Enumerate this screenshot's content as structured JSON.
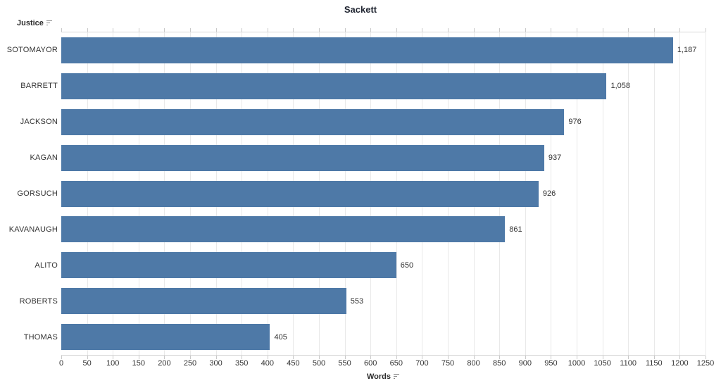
{
  "title": "Sackett",
  "row_axis": {
    "label": "Justice"
  },
  "col_axis": {
    "label": "Words"
  },
  "chart_data": {
    "type": "bar",
    "orientation": "horizontal",
    "title": "Sackett",
    "categories": [
      "SOTOMAYOR",
      "BARRETT",
      "JACKSON",
      "KAGAN",
      "GORSUCH",
      "KAVANAUGH",
      "ALITO",
      "ROBERTS",
      "THOMAS"
    ],
    "values": [
      1187,
      1058,
      976,
      937,
      926,
      861,
      650,
      553,
      405
    ],
    "value_labels": [
      "1,187",
      "1,058",
      "976",
      "937",
      "926",
      "861",
      "650",
      "553",
      "405"
    ],
    "xlabel": "Words",
    "ylabel": "Justice",
    "xlim": [
      0,
      1250
    ],
    "x_ticks": [
      0,
      50,
      100,
      150,
      200,
      250,
      300,
      350,
      400,
      450,
      500,
      550,
      600,
      650,
      700,
      750,
      800,
      850,
      900,
      950,
      1000,
      1050,
      1100,
      1150,
      1200,
      1250
    ],
    "grid": true,
    "legend": "none",
    "bar_color": "#4e79a7",
    "text_color": "#333333",
    "gridline_color": "#e9e9e9",
    "axis_line_color": "#d6d6d6"
  }
}
